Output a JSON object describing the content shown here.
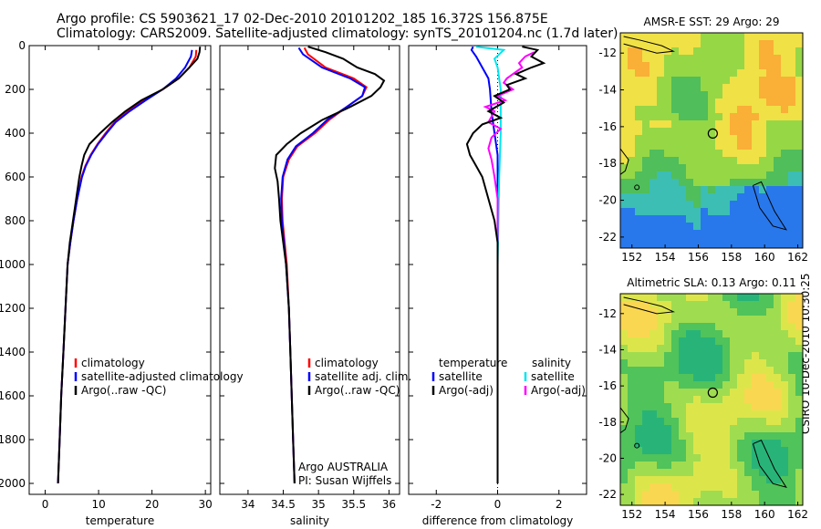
{
  "header": {
    "line1": "Argo profile: CS 5903621_17 02-Dec-2010 20101202_185 16.372S 156.875E",
    "line2": "Climatology: CARS2009. Satellite-adjusted climatology: synTS_20101204.nc (1.7d later)"
  },
  "credit": "CSIRO 10-Dec-2010 10:30:25",
  "colors": {
    "clim": "#ff0000",
    "sat": "#0000ff",
    "argo": "#000000",
    "sal_sat": "#00e5ee",
    "sal_argo": "#ff00ff"
  },
  "chart_data": [
    {
      "type": "line",
      "id": "temperature",
      "xlabel": "temperature",
      "xlim": [
        -3,
        31
      ],
      "xticks": [
        0,
        10,
        20,
        30
      ],
      "ylim": [
        2050,
        0
      ],
      "yticks": [
        0,
        200,
        400,
        600,
        800,
        1000,
        1200,
        1400,
        1600,
        1800,
        2000
      ],
      "legend": [
        "climatology",
        "satellite-adjusted climatology",
        "Argo(..raw -QC)"
      ],
      "series": [
        {
          "name": "climatology",
          "color": "clim",
          "points": [
            [
              28.3,
              20
            ],
            [
              28.2,
              50
            ],
            [
              27.0,
              100
            ],
            [
              25.0,
              150
            ],
            [
              22.0,
              200
            ],
            [
              18.5,
              250
            ],
            [
              15.5,
              300
            ],
            [
              13.0,
              350
            ],
            [
              11.3,
              400
            ],
            [
              9.8,
              450
            ],
            [
              8.5,
              500
            ],
            [
              7.5,
              550
            ],
            [
              6.8,
              600
            ],
            [
              6.0,
              700
            ],
            [
              5.3,
              800
            ],
            [
              4.7,
              900
            ],
            [
              4.2,
              1000
            ],
            [
              3.8,
              1200
            ],
            [
              3.4,
              1400
            ],
            [
              3.0,
              1600
            ],
            [
              2.7,
              1800
            ],
            [
              2.4,
              2000
            ]
          ]
        },
        {
          "name": "satellite-adjusted climatology",
          "color": "sat",
          "points": [
            [
              27.5,
              20
            ],
            [
              27.3,
              50
            ],
            [
              26.2,
              100
            ],
            [
              24.5,
              150
            ],
            [
              22.0,
              200
            ],
            [
              18.8,
              250
            ],
            [
              15.8,
              300
            ],
            [
              13.2,
              350
            ],
            [
              11.5,
              400
            ],
            [
              9.9,
              450
            ],
            [
              8.6,
              500
            ],
            [
              7.6,
              550
            ],
            [
              6.9,
              600
            ],
            [
              6.0,
              700
            ],
            [
              5.3,
              800
            ],
            [
              4.7,
              900
            ],
            [
              4.2,
              1000
            ],
            [
              3.8,
              1200
            ],
            [
              3.4,
              1400
            ],
            [
              3.0,
              1600
            ],
            [
              2.7,
              1800
            ],
            [
              2.4,
              2000
            ]
          ]
        },
        {
          "name": "Argo(..raw -QC)",
          "color": "argo",
          "points": [
            [
              29.0,
              5
            ],
            [
              28.9,
              30
            ],
            [
              28.5,
              60
            ],
            [
              27.0,
              100
            ],
            [
              25.0,
              150
            ],
            [
              22.0,
              200
            ],
            [
              18.0,
              250
            ],
            [
              15.0,
              300
            ],
            [
              12.5,
              350
            ],
            [
              10.3,
              400
            ],
            [
              8.3,
              450
            ],
            [
              7.3,
              500
            ],
            [
              6.8,
              550
            ],
            [
              6.4,
              600
            ],
            [
              5.8,
              700
            ],
            [
              5.2,
              800
            ],
            [
              4.6,
              900
            ],
            [
              4.2,
              1000
            ],
            [
              3.8,
              1200
            ],
            [
              3.4,
              1400
            ],
            [
              3.0,
              1600
            ],
            [
              2.7,
              1800
            ],
            [
              2.4,
              2000
            ]
          ]
        }
      ]
    },
    {
      "type": "line",
      "id": "salinity",
      "xlabel": "salinity",
      "xlim": [
        33.6,
        36.15
      ],
      "xticks": [
        34,
        34.5,
        35,
        35.5,
        36
      ],
      "ylim": [
        2050,
        0
      ],
      "yticks": [
        0,
        200,
        400,
        600,
        800,
        1000,
        1200,
        1400,
        1600,
        1800,
        2000
      ],
      "legend": [
        "climatology",
        "satellite adj. clim.",
        "Argo(..raw -QC)"
      ],
      "annotation": [
        "Argo AUSTRALIA",
        "PI: Susan Wijffels"
      ],
      "series": [
        {
          "name": "climatology",
          "color": "clim",
          "points": [
            [
              34.8,
              10
            ],
            [
              34.85,
              40
            ],
            [
              35.1,
              100
            ],
            [
              35.5,
              150
            ],
            [
              35.68,
              190
            ],
            [
              35.62,
              230
            ],
            [
              35.4,
              280
            ],
            [
              35.15,
              340
            ],
            [
              34.95,
              400
            ],
            [
              34.7,
              460
            ],
            [
              34.58,
              520
            ],
            [
              34.5,
              600
            ],
            [
              34.48,
              700
            ],
            [
              34.49,
              800
            ],
            [
              34.52,
              900
            ],
            [
              34.55,
              1000
            ],
            [
              34.58,
              1200
            ],
            [
              34.6,
              1400
            ],
            [
              34.62,
              1600
            ],
            [
              34.64,
              1800
            ],
            [
              34.66,
              2000
            ]
          ]
        },
        {
          "name": "satellite adj. clim.",
          "color": "sat",
          "points": [
            [
              34.72,
              10
            ],
            [
              34.78,
              40
            ],
            [
              35.05,
              100
            ],
            [
              35.45,
              150
            ],
            [
              35.66,
              190
            ],
            [
              35.62,
              230
            ],
            [
              35.4,
              280
            ],
            [
              35.12,
              340
            ],
            [
              34.92,
              400
            ],
            [
              34.68,
              460
            ],
            [
              34.56,
              520
            ],
            [
              34.49,
              600
            ],
            [
              34.47,
              700
            ],
            [
              34.48,
              800
            ],
            [
              34.51,
              900
            ],
            [
              34.54,
              1000
            ],
            [
              34.58,
              1200
            ],
            [
              34.6,
              1400
            ],
            [
              34.62,
              1600
            ],
            [
              34.64,
              1800
            ],
            [
              34.66,
              2000
            ]
          ]
        },
        {
          "name": "Argo(..raw -QC)",
          "color": "argo",
          "points": [
            [
              34.85,
              5
            ],
            [
              35.1,
              30
            ],
            [
              35.35,
              60
            ],
            [
              35.55,
              100
            ],
            [
              35.8,
              130
            ],
            [
              35.93,
              160
            ],
            [
              35.88,
              190
            ],
            [
              35.75,
              230
            ],
            [
              35.45,
              280
            ],
            [
              35.05,
              340
            ],
            [
              34.75,
              400
            ],
            [
              34.55,
              450
            ],
            [
              34.4,
              500
            ],
            [
              34.38,
              560
            ],
            [
              34.42,
              620
            ],
            [
              34.44,
              700
            ],
            [
              34.46,
              800
            ],
            [
              34.5,
              900
            ],
            [
              34.54,
              1000
            ],
            [
              34.58,
              1200
            ],
            [
              34.6,
              1400
            ],
            [
              34.62,
              1600
            ],
            [
              34.64,
              1800
            ],
            [
              34.66,
              2000
            ]
          ]
        }
      ]
    },
    {
      "type": "line",
      "id": "difference",
      "xlabel": "difference from climatology",
      "xlim": [
        -2.9,
        2.9
      ],
      "xticks": [
        -2,
        0,
        2
      ],
      "ylim": [
        2050,
        0
      ],
      "yticks": [
        0,
        200,
        400,
        600,
        800,
        1000,
        1200,
        1400,
        1600,
        1800,
        2000
      ],
      "legend_left_title": "temperature",
      "legend_right_title": "salinity",
      "legend": [
        "satellite",
        "Argo(-adj)",
        "satellite",
        "Argo(-adj)"
      ],
      "series": [
        {
          "name": "temperature satellite",
          "color": "sat",
          "points": [
            [
              -0.8,
              5
            ],
            [
              -0.85,
              20
            ],
            [
              -0.7,
              50
            ],
            [
              -0.5,
              100
            ],
            [
              -0.3,
              150
            ],
            [
              -0.25,
              200
            ],
            [
              -0.2,
              300
            ],
            [
              -0.1,
              400
            ],
            [
              0,
              500
            ],
            [
              0,
              2000
            ]
          ]
        },
        {
          "name": "salinity satellite",
          "color": "sal_sat",
          "points": [
            [
              -0.7,
              5
            ],
            [
              0.2,
              20
            ],
            [
              -0.1,
              60
            ],
            [
              0.0,
              100
            ],
            [
              0.1,
              200
            ],
            [
              0.1,
              400
            ],
            [
              0.05,
              600
            ],
            [
              0.0,
              1000
            ],
            [
              0.0,
              2000
            ]
          ]
        },
        {
          "name": "salinity Argo(-adj)",
          "color": "sal_argo",
          "points": [
            [
              1.2,
              30
            ],
            [
              0.9,
              50
            ],
            [
              0.7,
              80
            ],
            [
              0.8,
              100
            ],
            [
              0.3,
              150
            ],
            [
              0.2,
              170
            ],
            [
              0.5,
              200
            ],
            [
              0.0,
              230
            ],
            [
              0.25,
              250
            ],
            [
              -0.4,
              280
            ],
            [
              -0.1,
              300
            ],
            [
              -0.3,
              350
            ],
            [
              0.1,
              380
            ],
            [
              -0.2,
              420
            ],
            [
              -0.3,
              470
            ],
            [
              -0.2,
              520
            ],
            [
              -0.1,
              600
            ],
            [
              0.0,
              700
            ],
            [
              0.0,
              2000
            ]
          ]
        },
        {
          "name": "temperature Argo(-adj)",
          "color": "argo",
          "points": [
            [
              0.8,
              5
            ],
            [
              1.3,
              20
            ],
            [
              1.1,
              50
            ],
            [
              1.5,
              80
            ],
            [
              1.1,
              100
            ],
            [
              0.6,
              130
            ],
            [
              0.9,
              150
            ],
            [
              0.3,
              180
            ],
            [
              0.4,
              200
            ],
            [
              -0.1,
              230
            ],
            [
              0.2,
              260
            ],
            [
              -0.3,
              300
            ],
            [
              0.1,
              330
            ],
            [
              -0.5,
              360
            ],
            [
              -0.8,
              400
            ],
            [
              -1.0,
              450
            ],
            [
              -0.9,
              500
            ],
            [
              -0.7,
              550
            ],
            [
              -0.5,
              600
            ],
            [
              -0.3,
              700
            ],
            [
              -0.1,
              800
            ],
            [
              0.0,
              900
            ],
            [
              0.0,
              2000
            ]
          ]
        }
      ]
    },
    {
      "type": "heatmap",
      "id": "sst-map",
      "title": "AMSR-E SST: 29 Argo: 29",
      "xticks": [
        152,
        154,
        156,
        158,
        160,
        162
      ],
      "yticks": [
        -12,
        -14,
        -16,
        -18,
        -20,
        -22
      ],
      "xlim": [
        151.3,
        162.3
      ],
      "ylim": [
        -22.6,
        -10.9
      ],
      "marker": {
        "lon": 156.875,
        "lat": -16.372
      }
    },
    {
      "type": "heatmap",
      "id": "sla-map",
      "title": "Altimetric SLA: 0.13 Argo: 0.11",
      "xticks": [
        152,
        154,
        156,
        158,
        160,
        162
      ],
      "yticks": [
        -12,
        -14,
        -16,
        -18,
        -20,
        -22
      ],
      "xlim": [
        151.3,
        162.3
      ],
      "ylim": [
        -22.6,
        -10.9
      ],
      "marker": {
        "lon": 156.875,
        "lat": -16.372
      }
    }
  ]
}
